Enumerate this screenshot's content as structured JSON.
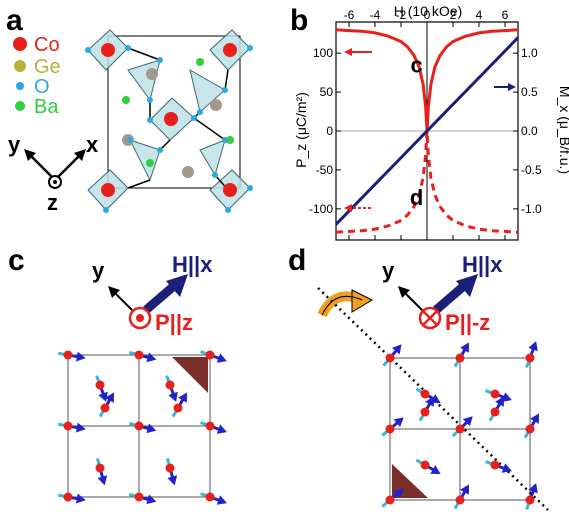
{
  "panels": {
    "a": "a",
    "b": "b",
    "c": "c",
    "d": "d"
  },
  "legend": [
    {
      "label": "Co",
      "color": "#e8201c"
    },
    {
      "label": "Ge",
      "color": "#b8b23a"
    },
    {
      "label": "O",
      "color": "#2aa8e6"
    },
    {
      "label": "Ba",
      "color": "#2fd03c"
    }
  ],
  "axes_a": {
    "y": "y",
    "x": "x",
    "z": "z"
  },
  "panel_c": {
    "y": "y",
    "h_label": "H||x",
    "p_label": "P||z"
  },
  "panel_d": {
    "y": "y",
    "h_label": "H||x",
    "p_label": "P||-z"
  },
  "chart_data": {
    "type": "line",
    "xlabel": "H (10 kOe)",
    "ylabel_left": "P_z (μC/m²)",
    "ylabel_right": "M_x (μ_B/f.u.)",
    "xlim": [
      -7,
      7
    ],
    "ylim_left": [
      -140,
      140
    ],
    "ylim_right": [
      -1.4,
      1.4
    ],
    "x_ticks": [
      -6,
      -4,
      -2,
      0,
      2,
      4,
      6
    ],
    "y_ticks_left": [
      -100,
      -50,
      0,
      50,
      100
    ],
    "y_ticks_right": [
      -1.0,
      -0.5,
      0.0,
      0.5,
      1.0
    ],
    "inset_labels": {
      "upper": "c",
      "lower": "d"
    },
    "series": [
      {
        "color": "#e8201c",
        "style": "solid",
        "axis": "left",
        "x": [
          -7,
          -6,
          -5,
          -4,
          -3,
          -2,
          -1.5,
          -1,
          -0.6,
          -0.3,
          -0.1,
          0,
          0.1,
          0.3,
          0.6,
          1,
          1.5,
          2,
          3,
          4,
          5,
          6,
          7
        ],
        "y": [
          130,
          129,
          128,
          126,
          122,
          115,
          108,
          97,
          82,
          60,
          30,
          0,
          30,
          60,
          82,
          97,
          108,
          115,
          122,
          126,
          128,
          129,
          130
        ]
      },
      {
        "color": "#e8201c",
        "style": "dashed",
        "axis": "left",
        "x": [
          -7,
          -6,
          -5,
          -4,
          -3,
          -2,
          -1.5,
          -1,
          -0.6,
          -0.3,
          -0.1,
          0,
          0.1,
          0.3,
          0.6,
          1,
          1.5,
          2,
          3,
          4,
          5,
          6,
          7
        ],
        "y": [
          -130,
          -129,
          -128,
          -126,
          -122,
          -115,
          -108,
          -97,
          -82,
          -60,
          -30,
          0,
          -30,
          -60,
          -82,
          -97,
          -108,
          -115,
          -122,
          -126,
          -128,
          -129,
          -130
        ]
      },
      {
        "color": "#1c1f7a",
        "style": "solid",
        "axis": "right",
        "x": [
          -7,
          7
        ],
        "y": [
          -1.2,
          1.2
        ]
      }
    ]
  }
}
